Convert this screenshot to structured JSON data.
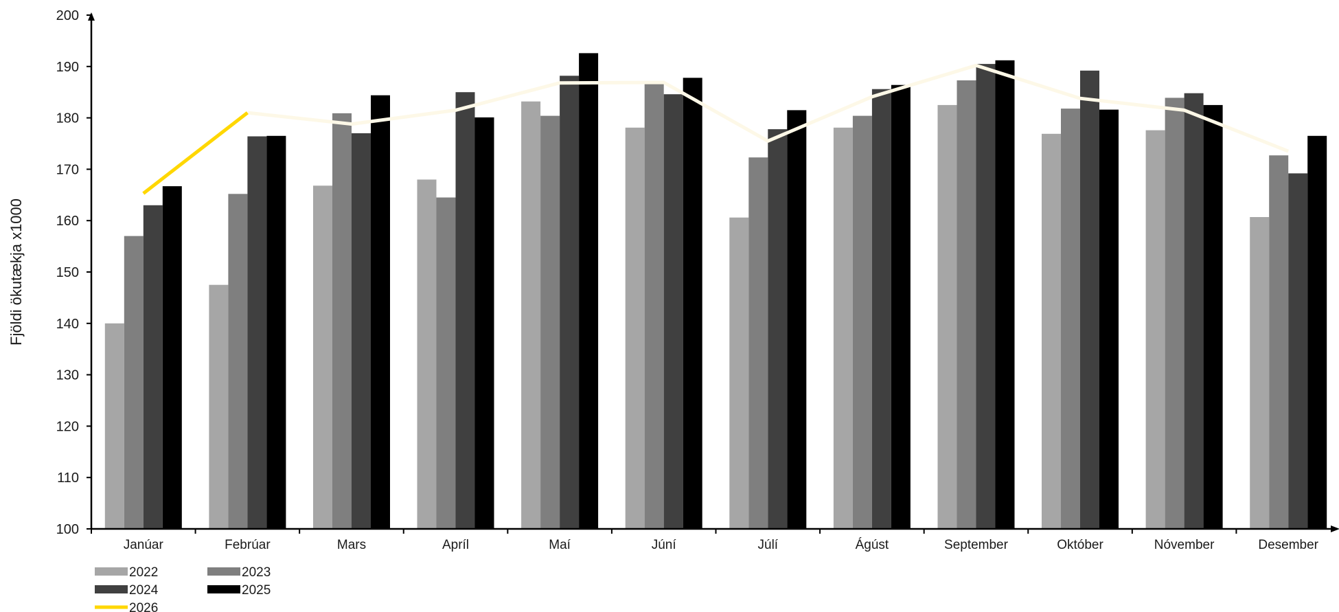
{
  "chart_data": {
    "type": "bar",
    "title": "",
    "xlabel": "",
    "ylabel": "Fjöldi ökutækja x1000",
    "ylim": [
      100,
      200
    ],
    "yticks": [
      100,
      110,
      120,
      130,
      140,
      150,
      160,
      170,
      180,
      190,
      200
    ],
    "grid": false,
    "legend_position": "bottom-left",
    "categories": [
      "Janúar",
      "Febrúar",
      "Mars",
      "Apríl",
      "Maí",
      "Júní",
      "Júlí",
      "Ágúst",
      "September",
      "Október",
      "Nóvember",
      "Desember"
    ],
    "series": [
      {
        "name": "2022",
        "type": "bar",
        "color": "#a6a6a6",
        "values": [
          140,
          147.5,
          166.8,
          168,
          183.2,
          178.1,
          160.6,
          178.1,
          182.5,
          176.9,
          177.6,
          160.7
        ]
      },
      {
        "name": "2023",
        "type": "bar",
        "color": "#7f7f7f",
        "values": [
          157,
          165.2,
          180.9,
          164.5,
          180.4,
          186.8,
          172.3,
          180.4,
          187.3,
          181.8,
          183.9,
          172.7
        ]
      },
      {
        "name": "2024",
        "type": "bar",
        "color": "#404040",
        "values": [
          163,
          176.4,
          177,
          185,
          188.2,
          184.6,
          177.8,
          185.6,
          190.5,
          189.2,
          184.8,
          169.2
        ]
      },
      {
        "name": "2025",
        "type": "bar",
        "color": "#000000",
        "values": [
          166.7,
          176.5,
          184.4,
          180.1,
          192.6,
          187.8,
          181.5,
          186.4,
          191.2,
          181.6,
          182.5,
          176.5
        ]
      },
      {
        "name": "2026",
        "type": "line",
        "color": "#ffd700",
        "fade_color": "#fdf8e7",
        "highlight_points": 2,
        "values": [
          165.3,
          181,
          178.8,
          181.5,
          186.8,
          186.9,
          175.5,
          184.1,
          190.2,
          183.8,
          181.5,
          173.5
        ]
      }
    ]
  }
}
